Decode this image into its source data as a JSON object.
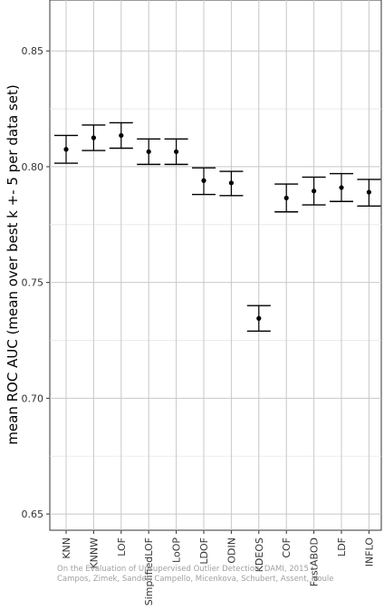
{
  "chart_data": {
    "type": "scatter",
    "ylabel": "mean ROC AUC (mean over best k +- 5 per data set)",
    "xlabel": "",
    "ylim": [
      0.643,
      0.872
    ],
    "yticks": [
      0.65,
      0.7,
      0.75,
      0.8,
      0.85
    ],
    "ytick_labels": [
      "0.65",
      "0.70",
      "0.75",
      "0.80",
      "0.85"
    ],
    "categories": [
      "KNN",
      "KNNW",
      "LOF",
      "SimplifiedLOF",
      "LoOP",
      "LDOF",
      "ODIN",
      "KDEOS",
      "COF",
      "FastABOD",
      "LDF",
      "INFLO"
    ],
    "series": [
      {
        "mean": [
          0.8075,
          0.8125,
          0.8135,
          0.8065,
          0.8065,
          0.794,
          0.793,
          0.7345,
          0.7865,
          0.7895,
          0.791,
          0.789
        ],
        "lower": [
          0.8015,
          0.807,
          0.808,
          0.801,
          0.801,
          0.788,
          0.7875,
          0.729,
          0.7805,
          0.7835,
          0.785,
          0.783
        ],
        "upper": [
          0.8135,
          0.818,
          0.819,
          0.812,
          0.812,
          0.7995,
          0.798,
          0.74,
          0.7925,
          0.7955,
          0.797,
          0.7945
        ]
      }
    ],
    "grid": true,
    "legend": "none"
  },
  "watermark": {
    "line1": "On the Evaluation of Unsupervised Outlier Detection, DAMI, 2015",
    "line2": "Campos, Zimek, Sander, Campello, Micenkova, Schubert, Assent, Houle"
  }
}
